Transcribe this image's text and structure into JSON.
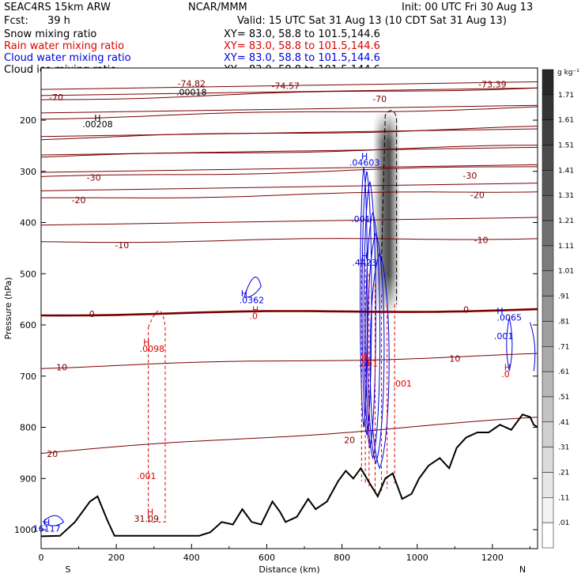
{
  "header": {
    "model": "SEAC4RS 15km ARW",
    "center": "NCAR/MMM",
    "init": "Init: 00 UTC Fri 30 Aug 13",
    "fcst_label": "Fcst:",
    "fcst_value": "39 h",
    "valid": "Valid: 15 UTC Sat 31 Aug 13 (10 CDT Sat 31 Aug 13)",
    "legend": [
      {
        "name": "Snow mixing ratio",
        "xy": "XY=  83.0, 58.8 to 101.5,144.6",
        "color": "#000000"
      },
      {
        "name": "Rain water mixing ratio",
        "xy": "XY=  83.0, 58.8 to 101.5,144.6",
        "color": "#e00000"
      },
      {
        "name": "Cloud water mixing ratio",
        "xy": "XY=  83.0, 58.8 to 101.5,144.6",
        "color": "#0000e0"
      },
      {
        "name": "Cloud ice mixing ratio",
        "xy": "XY=  83.0, 58.8 to 101.5,144.6",
        "color": "#000000"
      }
    ]
  },
  "chart_data": {
    "type": "cross-section",
    "xlabel": "Distance (km)",
    "ylabel": "Pressure (hPa)",
    "xlim": [
      0,
      1320
    ],
    "ylim": [
      1050,
      100
    ],
    "x_ticks": [
      0,
      200,
      400,
      600,
      800,
      1000,
      1200
    ],
    "y_ticks": [
      1000,
      900,
      800,
      700,
      600,
      500,
      400,
      300,
      200
    ],
    "end_labels": {
      "left": "S",
      "right": "N"
    },
    "colorbar": {
      "unit": "g kg⁻¹",
      "levels": [
        "1.71",
        "1.61",
        "1.51",
        "1.41",
        "1.31",
        "1.21",
        "1.11",
        "1.01",
        ".91",
        ".81",
        ".71",
        ".61",
        ".51",
        ".41",
        ".31",
        ".21",
        ".11",
        ".01"
      ]
    },
    "temperature_isotherms": [
      {
        "label": "-70",
        "p_left": 160,
        "p_right": 136
      },
      {
        "label": "-60",
        "p_left": 196,
        "p_right": 175
      },
      {
        "label": "-50",
        "p_left": 236,
        "p_right": 214
      },
      {
        "label": "-40",
        "p_left": 272,
        "p_right": 250
      },
      {
        "label": "-30",
        "p_left": 312,
        "p_right": 290
      },
      {
        "label": "-20",
        "p_left": 354,
        "p_right": 338
      },
      {
        "label": "-10",
        "p_left": 438,
        "p_right": 430
      },
      {
        "label": "0",
        "p_left": 580,
        "p_right": 570
      },
      {
        "label": "10",
        "p_left": 683,
        "p_right": 658
      },
      {
        "label": "20",
        "p_left": 850,
        "p_right": 782
      }
    ],
    "isotherm_labels": [
      {
        "text": "-70",
        "x": 40,
        "p": 155
      },
      {
        "text": "-70",
        "x": 900,
        "p": 158
      },
      {
        "text": "-30",
        "x": 140,
        "p": 312
      },
      {
        "text": "-30",
        "x": 1140,
        "p": 308
      },
      {
        "text": "-20",
        "x": 100,
        "p": 356
      },
      {
        "text": "-20",
        "x": 1160,
        "p": 346
      },
      {
        "text": "-10",
        "x": 215,
        "p": 444
      },
      {
        "text": "-10",
        "x": 1170,
        "p": 434
      },
      {
        "text": "0",
        "x": 135,
        "p": 578
      },
      {
        "text": "0",
        "x": 1130,
        "p": 570
      },
      {
        "text": "10",
        "x": 55,
        "p": 683
      },
      {
        "text": "10",
        "x": 1100,
        "p": 666
      },
      {
        "text": "20",
        "x": 30,
        "p": 852
      },
      {
        "text": "20",
        "x": 820,
        "p": 825
      }
    ],
    "extrema_labels": [
      {
        "text": "-74.82",
        "x": 400,
        "p": 128,
        "color": "#7a0000"
      },
      {
        "text": ".00018",
        "x": 400,
        "p": 145,
        "color": "#000000"
      },
      {
        "text": "-74.57",
        "x": 650,
        "p": 133,
        "color": "#7a0000"
      },
      {
        "text": "-73.39",
        "x": 1200,
        "p": 130,
        "color": "#7a0000"
      },
      {
        "text": "H",
        "x": 150,
        "p": 195,
        "color": "#000000"
      },
      {
        "text": ".00208",
        "x": 150,
        "p": 208,
        "color": "#000000"
      },
      {
        "text": "H",
        "x": 860,
        "p": 270,
        "color": "#0000e0"
      },
      {
        "text": ".04603",
        "x": 860,
        "p": 283,
        "color": "#0000e0"
      },
      {
        "text": ".001",
        "x": 850,
        "p": 393,
        "color": "#0000e0"
      },
      {
        "text": "H",
        "x": 860,
        "p": 465,
        "color": "#0000e0"
      },
      {
        "text": ".4423",
        "x": 860,
        "p": 478,
        "color": "#0000e0"
      },
      {
        "text": "H",
        "x": 540,
        "p": 538,
        "color": "#0000e0"
      },
      {
        "text": ".0362",
        "x": 560,
        "p": 551,
        "color": "#0000e0"
      },
      {
        "text": "H",
        "x": 570,
        "p": 570,
        "color": "#e00000"
      },
      {
        "text": ".0",
        "x": 565,
        "p": 582,
        "color": "#e00000"
      },
      {
        "text": "H",
        "x": 280,
        "p": 633,
        "color": "#e00000"
      },
      {
        "text": ".0098",
        "x": 295,
        "p": 646,
        "color": "#e00000"
      },
      {
        "text": "H",
        "x": 860,
        "p": 662,
        "color": "#e00000"
      },
      {
        "text": ".581",
        "x": 870,
        "p": 675,
        "color": "#e00000"
      },
      {
        "text": ".001",
        "x": 960,
        "p": 714,
        "color": "#e00000"
      },
      {
        "text": ".001",
        "x": 280,
        "p": 895,
        "color": "#e00000"
      },
      {
        "text": "H",
        "x": 290,
        "p": 965,
        "color": "#e00000"
      },
      {
        "text": "31.09",
        "x": 280,
        "p": 978,
        "color": "#7a0000"
      },
      {
        "text": "H",
        "x": 15,
        "p": 985,
        "color": "#0000e0"
      },
      {
        "text": "16117",
        "x": 15,
        "p": 998,
        "color": "#0000e0"
      },
      {
        "text": "H",
        "x": 1220,
        "p": 572,
        "color": "#0000e0"
      },
      {
        "text": ".0065",
        "x": 1245,
        "p": 585,
        "color": "#0000e0"
      },
      {
        "text": ".001",
        "x": 1230,
        "p": 622,
        "color": "#0000e0"
      },
      {
        "text": "H",
        "x": 1240,
        "p": 683,
        "color": "#e00000"
      },
      {
        "text": ".0",
        "x": 1235,
        "p": 696,
        "color": "#e00000"
      }
    ],
    "terrain_pressure": [
      {
        "x": 0,
        "p": 1013
      },
      {
        "x": 50,
        "p": 1012
      },
      {
        "x": 90,
        "p": 985
      },
      {
        "x": 130,
        "p": 945
      },
      {
        "x": 150,
        "p": 935
      },
      {
        "x": 175,
        "p": 980
      },
      {
        "x": 195,
        "p": 1012
      },
      {
        "x": 300,
        "p": 1012
      },
      {
        "x": 420,
        "p": 1012
      },
      {
        "x": 450,
        "p": 1005
      },
      {
        "x": 480,
        "p": 985
      },
      {
        "x": 510,
        "p": 990
      },
      {
        "x": 535,
        "p": 960
      },
      {
        "x": 560,
        "p": 985
      },
      {
        "x": 585,
        "p": 990
      },
      {
        "x": 615,
        "p": 945
      },
      {
        "x": 635,
        "p": 965
      },
      {
        "x": 650,
        "p": 985
      },
      {
        "x": 680,
        "p": 975
      },
      {
        "x": 710,
        "p": 940
      },
      {
        "x": 730,
        "p": 960
      },
      {
        "x": 760,
        "p": 945
      },
      {
        "x": 790,
        "p": 905
      },
      {
        "x": 810,
        "p": 885
      },
      {
        "x": 830,
        "p": 900
      },
      {
        "x": 850,
        "p": 880
      },
      {
        "x": 870,
        "p": 905
      },
      {
        "x": 895,
        "p": 935
      },
      {
        "x": 915,
        "p": 900
      },
      {
        "x": 935,
        "p": 890
      },
      {
        "x": 960,
        "p": 940
      },
      {
        "x": 985,
        "p": 930
      },
      {
        "x": 1005,
        "p": 900
      },
      {
        "x": 1030,
        "p": 875
      },
      {
        "x": 1060,
        "p": 860
      },
      {
        "x": 1085,
        "p": 880
      },
      {
        "x": 1105,
        "p": 840
      },
      {
        "x": 1130,
        "p": 820
      },
      {
        "x": 1160,
        "p": 810
      },
      {
        "x": 1190,
        "p": 810
      },
      {
        "x": 1220,
        "p": 795
      },
      {
        "x": 1250,
        "p": 805
      },
      {
        "x": 1280,
        "p": 775
      },
      {
        "x": 1300,
        "p": 780
      },
      {
        "x": 1310,
        "p": 795
      },
      {
        "x": 1320,
        "p": 800
      }
    ]
  }
}
